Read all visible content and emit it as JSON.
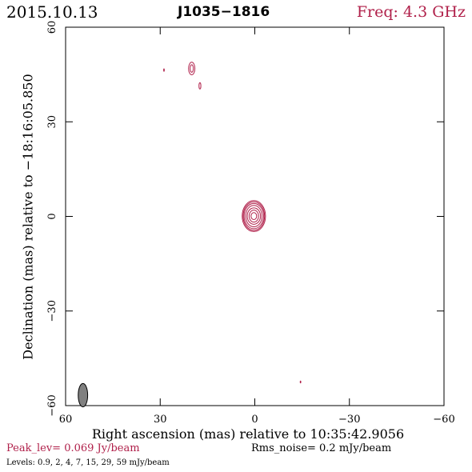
{
  "header": {
    "date": "2015.10.13",
    "source": "J1035−1816",
    "frequency": "Freq: 4.3 GHz"
  },
  "footer": {
    "peak": "Peak_lev=  0.069 Jy/beam",
    "rms": "Rms_noise=  0.2 mJy/beam",
    "levels": "Levels: 0.9,   2,   4,   7,  15,  29,  59 mJy/beam"
  },
  "colors": {
    "contour": "#b0204a",
    "beam": "#808080",
    "text_accent": "#b0204a",
    "axes": "#000000"
  },
  "chart_data": {
    "type": "contour",
    "title": "J1035−1816",
    "xlabel": "Right ascension (mas) relative to 10:35:42.9056",
    "ylabel": "Declination (mas) relative to −18:16:05.850",
    "xlim": [
      60,
      -60
    ],
    "ylim": [
      -60,
      60
    ],
    "xticks": [
      60,
      30,
      0,
      -30,
      -60
    ],
    "yticks": [
      -60,
      -30,
      0,
      30,
      60
    ],
    "xtick_labels": [
      "60",
      "30",
      "0",
      "−30",
      "−60"
    ],
    "ytick_labels": [
      "−60",
      "−30",
      "0",
      "30",
      "60"
    ],
    "grid": false,
    "levels_mJy_per_beam": [
      0.9,
      2,
      4,
      7,
      15,
      29,
      59
    ],
    "peak_Jy_per_beam": 0.069,
    "rms_noise_mJy_per_beam": 0.2,
    "components": [
      {
        "x": 0.3,
        "y": 0.1,
        "rx": [
          3.7,
          3.4,
          3.1,
          2.6,
          2.1,
          1.5,
          0.9
        ],
        "ry": [
          4.9,
          4.5,
          4.0,
          3.4,
          2.6,
          1.9,
          1.1
        ]
      },
      {
        "x": 20.0,
        "y": 46.9,
        "rx": [
          1.0,
          0.5
        ],
        "ry": [
          2.0,
          1.2
        ]
      },
      {
        "x": 17.4,
        "y": 41.4,
        "rx": [
          0.3
        ],
        "ry": [
          1.0
        ]
      },
      {
        "x": 28.8,
        "y": 46.4,
        "rx": [
          0.1
        ],
        "ry": [
          0.4
        ]
      },
      {
        "x": -14.5,
        "y": -52.5,
        "rx": [
          0.1
        ],
        "ry": [
          0.3
        ]
      }
    ],
    "beam": {
      "x": 54.5,
      "y": -56.7,
      "major": 3.7,
      "minor": 1.5,
      "pa_deg": 0
    }
  }
}
